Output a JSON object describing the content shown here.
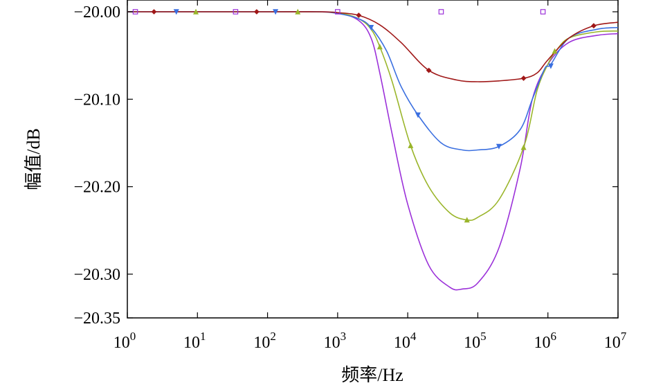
{
  "chart_data": {
    "type": "line",
    "xlabel": "频率/Hz",
    "ylabel": "幅值/dB",
    "x_scale": "log",
    "xlim": [
      1,
      10000000
    ],
    "ylim": [
      -20.35,
      -20.0
    ],
    "x_ticks": [
      {
        "value": 1,
        "base": "10",
        "exp": "0"
      },
      {
        "value": 10,
        "base": "10",
        "exp": "1"
      },
      {
        "value": 100,
        "base": "10",
        "exp": "2"
      },
      {
        "value": 1000,
        "base": "10",
        "exp": "3"
      },
      {
        "value": 10000,
        "base": "10",
        "exp": "4"
      },
      {
        "value": 100000,
        "base": "10",
        "exp": "5"
      },
      {
        "value": 1000000,
        "base": "10",
        "exp": "6"
      },
      {
        "value": 10000000,
        "base": "10",
        "exp": "7"
      }
    ],
    "y_ticks": [
      {
        "value": -20.0,
        "label": "−20.00"
      },
      {
        "value": -20.1,
        "label": "−20.10"
      },
      {
        "value": -20.2,
        "label": "−20.20"
      },
      {
        "value": -20.3,
        "label": "−20.30"
      },
      {
        "value": -20.35,
        "label": "−20.35"
      }
    ],
    "grid": false,
    "legend": "none",
    "series": [
      {
        "color": "#9b30d9",
        "marker": "square",
        "points": [
          [
            1,
            -20.0
          ],
          [
            100,
            -20.0
          ],
          [
            400,
            -20.0
          ],
          [
            1000,
            -20.001
          ],
          [
            2000,
            -20.01
          ],
          [
            3000,
            -20.03
          ],
          [
            4000,
            -20.07
          ],
          [
            6000,
            -20.14
          ],
          [
            10000,
            -20.22
          ],
          [
            20000,
            -20.29
          ],
          [
            40000,
            -20.315
          ],
          [
            60000,
            -20.317
          ],
          [
            100000,
            -20.31
          ],
          [
            200000,
            -20.27
          ],
          [
            400000,
            -20.18
          ],
          [
            600000,
            -20.1
          ],
          [
            1000000,
            -20.06
          ],
          [
            2000000,
            -20.035
          ],
          [
            5000000,
            -20.027
          ],
          [
            10000000,
            -20.025
          ]
        ],
        "markers": [
          [
            1.3,
            -20.0
          ],
          [
            35,
            -20.0
          ],
          [
            1000,
            -20.0
          ],
          [
            30000,
            -20.0
          ],
          [
            850000,
            -20.0
          ]
        ]
      },
      {
        "color": "#9ab52a",
        "marker": "triangle-up",
        "points": [
          [
            1,
            -20.0
          ],
          [
            100,
            -20.0
          ],
          [
            400,
            -20.0
          ],
          [
            1000,
            -20.001
          ],
          [
            2000,
            -20.008
          ],
          [
            3000,
            -20.02
          ],
          [
            4000,
            -20.04
          ],
          [
            6000,
            -20.08
          ],
          [
            11000,
            -20.153
          ],
          [
            20000,
            -20.2
          ],
          [
            40000,
            -20.23
          ],
          [
            70000,
            -20.238
          ],
          [
            100000,
            -20.235
          ],
          [
            200000,
            -20.215
          ],
          [
            450000,
            -20.155
          ],
          [
            700000,
            -20.09
          ],
          [
            1000000,
            -20.06
          ],
          [
            1300000,
            -20.045
          ],
          [
            2000000,
            -20.03
          ],
          [
            5000000,
            -20.023
          ],
          [
            10000000,
            -20.022
          ]
        ],
        "markers": [
          [
            9.5,
            -20.0
          ],
          [
            270,
            -20.0
          ],
          [
            4000,
            -20.04
          ],
          [
            11000,
            -20.153
          ],
          [
            70000,
            -20.238
          ],
          [
            450000,
            -20.155
          ],
          [
            1250000,
            -20.045
          ]
        ]
      },
      {
        "color": "#3a6fe0",
        "marker": "triangle-down",
        "points": [
          [
            1,
            -20.0
          ],
          [
            100,
            -20.0
          ],
          [
            500,
            -20.0
          ],
          [
            1000,
            -20.002
          ],
          [
            2000,
            -20.008
          ],
          [
            3000,
            -20.018
          ],
          [
            5000,
            -20.045
          ],
          [
            8000,
            -20.085
          ],
          [
            14000,
            -20.118
          ],
          [
            30000,
            -20.15
          ],
          [
            60000,
            -20.158
          ],
          [
            100000,
            -20.158
          ],
          [
            200000,
            -20.154
          ],
          [
            400000,
            -20.135
          ],
          [
            600000,
            -20.1
          ],
          [
            900000,
            -20.065
          ],
          [
            1100000,
            -20.06
          ],
          [
            2000000,
            -20.03
          ],
          [
            5000000,
            -20.02
          ],
          [
            10000000,
            -20.018
          ]
        ],
        "markers": [
          [
            5,
            -20.0
          ],
          [
            130,
            -20.0
          ],
          [
            3000,
            -20.018
          ],
          [
            14000,
            -20.118
          ],
          [
            200000,
            -20.154
          ],
          [
            1100000,
            -20.062
          ]
        ]
      },
      {
        "color": "#a01818",
        "marker": "diamond",
        "points": [
          [
            1,
            -20.0
          ],
          [
            100,
            -20.0
          ],
          [
            500,
            -20.0
          ],
          [
            1000,
            -20.001
          ],
          [
            2000,
            -20.004
          ],
          [
            4000,
            -20.015
          ],
          [
            8000,
            -20.035
          ],
          [
            20000,
            -20.067
          ],
          [
            50000,
            -20.078
          ],
          [
            100000,
            -20.08
          ],
          [
            200000,
            -20.079
          ],
          [
            450000,
            -20.076
          ],
          [
            700000,
            -20.07
          ],
          [
            1000000,
            -20.055
          ],
          [
            2000000,
            -20.03
          ],
          [
            4500000,
            -20.016
          ],
          [
            10000000,
            -20.012
          ]
        ],
        "markers": [
          [
            2.4,
            -20.0
          ],
          [
            70,
            -20.0
          ],
          [
            2000,
            -20.004
          ],
          [
            20000,
            -20.067
          ],
          [
            450000,
            -20.076
          ],
          [
            4500000,
            -20.016
          ]
        ]
      }
    ]
  }
}
